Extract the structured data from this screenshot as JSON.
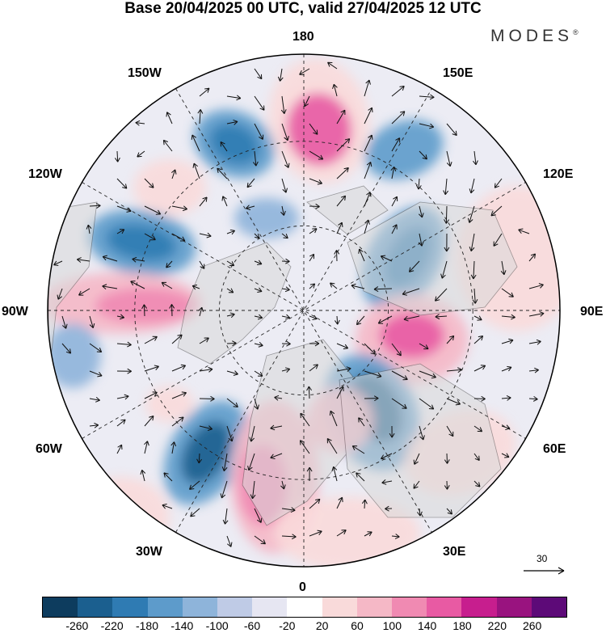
{
  "title": "Base 20/04/2025 00 UTC, valid 27/04/2025 12 UTC",
  "brand": {
    "name": "MODES",
    "mark": "®"
  },
  "longitude_labels": {
    "top": "180",
    "bottom": "0",
    "left": "90W",
    "right": "90E",
    "top_left": "150W",
    "top_right": "150E",
    "upper_left": "120W",
    "upper_right": "120E",
    "lower_left": "60W",
    "lower_right": "60E",
    "bottom_left": "30W",
    "bottom_right": "30E"
  },
  "reference_vector": {
    "label": "30"
  },
  "colorbar": {
    "colors": [
      "#0d3c5e",
      "#1b5f8f",
      "#2f7bb3",
      "#5d9bcb",
      "#8eb4da",
      "#bfcbe6",
      "#e6e6f2",
      "#ffffff",
      "#f9dada",
      "#f5b8c6",
      "#f08ab2",
      "#e85aa3",
      "#c71e8e",
      "#99137f",
      "#5d0a78"
    ],
    "tick_labels": [
      "-260",
      "-220",
      "-180",
      "-140",
      "-100",
      "-60",
      "-20",
      "20",
      "60",
      "100",
      "140",
      "180",
      "220",
      "260"
    ]
  },
  "colors": {
    "land": "#d9d9d9",
    "grid": "#222222",
    "arrow": "#111111"
  }
}
